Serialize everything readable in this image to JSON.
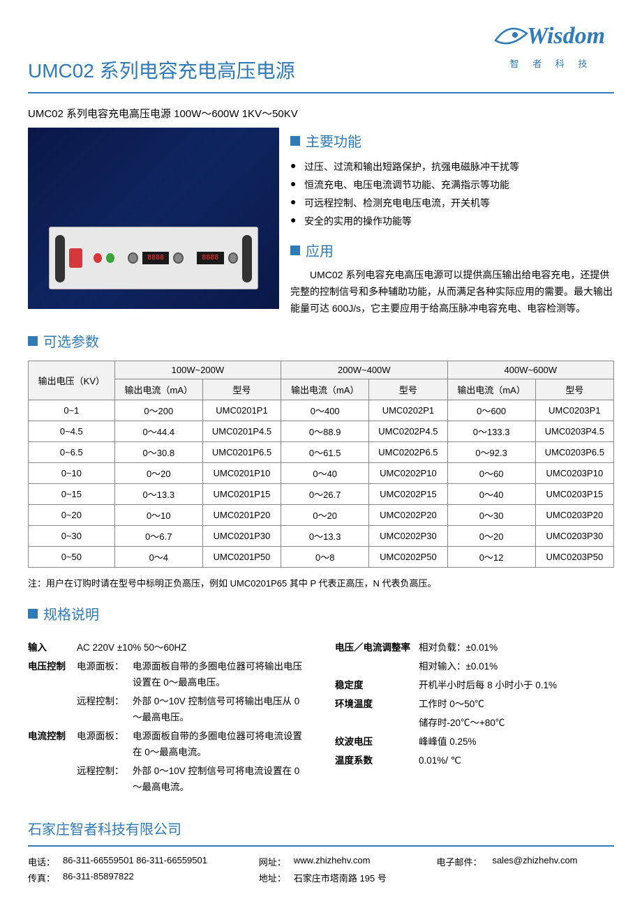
{
  "logo": {
    "text": "Wisdom",
    "sub": "智 者 科 技"
  },
  "title": "UMC02 系列电容充电高压电源",
  "subtitle": "UMC02 系列电容充电高压电源  100W～600W    1KV～50KV",
  "device_display": "8888",
  "sections": {
    "features_title": "主要功能",
    "app_title": "应用",
    "params_title": "可选参数",
    "spec_title": "规格说明"
  },
  "features": [
    "过压、过流和输出短路保护，抗强电磁脉冲干扰等",
    "恒流充电、电压电流调节功能、充满指示等功能",
    "可远程控制、检测充电电压电流，开关机等",
    "安全的实用的操作功能等"
  ],
  "application": "UMC02 系列电容充电高压电源可以提供高压输出给电容充电，还提供完整的控制信号和多种辅助功能，从而满足各种实际应用的需要。最大输出能量可达 600J/s，它主要应用于给高压脉冲电容充电、电容检测等。",
  "table": {
    "h1": "输出电压（KV）",
    "g1": "100W~200W",
    "g2": "200W~400W",
    "g3": "400W~600W",
    "sc1": "输出电流（mA）",
    "sc2": "型号",
    "sc3": "输出电流（mA）",
    "sc4": "型号",
    "sc5": "输出电流（mA）",
    "sc6": "型号",
    "rows": [
      [
        "0~1",
        "0～200",
        "UMC0201P1",
        "0～400",
        "UMC0202P1",
        "0～600",
        "UMC0203P1"
      ],
      [
        "0~4.5",
        "0～44.4",
        "UMC0201P4.5",
        "0～88.9",
        "UMC0202P4.5",
        "0～133.3",
        "UMC0203P4.5"
      ],
      [
        "0~6.5",
        "0～30.8",
        "UMC0201P6.5",
        "0～61.5",
        "UMC0202P6.5",
        "0～92.3",
        "UMC0203P6.5"
      ],
      [
        "0~10",
        "0～20",
        "UMC0201P10",
        "0～40",
        "UMC0202P10",
        "0～60",
        "UMC0203P10"
      ],
      [
        "0~15",
        "0～13.3",
        "UMC0201P15",
        "0～26.7",
        "UMC0202P15",
        "0～40",
        "UMC0203P15"
      ],
      [
        "0~20",
        "0～10",
        "UMC0201P20",
        "0～20",
        "UMC0202P20",
        "0～30",
        "UMC0203P20"
      ],
      [
        "0~30",
        "0～6.7",
        "UMC0201P30",
        "0～13.3",
        "UMC0202P30",
        "0～20",
        "UMC0203P30"
      ],
      [
        "0~50",
        "0～4",
        "UMC0201P50",
        "0～8",
        "UMC0202P50",
        "0～12",
        "UMC0203P50"
      ]
    ]
  },
  "note": "注：用户在订购时请在型号中标明正负高压，例如 UMC0201P65 其中 P 代表正高压，N 代表负高压。",
  "spec_left": {
    "input_label": "输入",
    "input_value": "AC 220V    ±10%    50～60HZ",
    "vc_label": "电压控制",
    "vc_panel": "电源面板：",
    "vc_panel_v": "电源面板自带的多圈电位器可将输出电压设置在 0～最高电压。",
    "vc_remote": "远程控制：",
    "vc_remote_v": "外部 0～10V 控制信号可将输出电压从 0～最高电压。",
    "cc_label": "电流控制",
    "cc_panel": "电源面板：",
    "cc_panel_v": "电源面板自带的多圈电位器可将电流设置在 0～最高电流。",
    "cc_remote": "远程控制：",
    "cc_remote_v": "外部 0～10V 控制信号可将电流设置在 0～最高电流。"
  },
  "spec_right": {
    "reg_label": "电压／电流调整率",
    "reg_v1": "相对负载：±0.01%",
    "reg_v2": "相对输入：±0.01%",
    "stab_label": "稳定度",
    "stab_v": "开机半小时后每 8 小时小于 0.1%",
    "temp_label": "环境温度",
    "temp_v1": "工作时 0～50℃",
    "temp_v2": "储存时-20℃～+80℃",
    "ripple_label": "纹波电压",
    "ripple_v": "峰峰值 0.25%",
    "tc_label": "温度系数",
    "tc_v": "0.01%/ ℃"
  },
  "footer": {
    "company": "石家庄智者科技有限公司",
    "phone_l": "电话：",
    "phone": "86-311-66559501      86-311-66559501",
    "fax_l": "传真：",
    "fax": "86-311-85897822",
    "web_l": "网址：",
    "web": "www.zhizhehv.com",
    "addr_l": "地址：",
    "addr": "石家庄市塔南路 195 号",
    "email_l": "电子邮件：",
    "email": "sales@zhizhehv.com"
  }
}
